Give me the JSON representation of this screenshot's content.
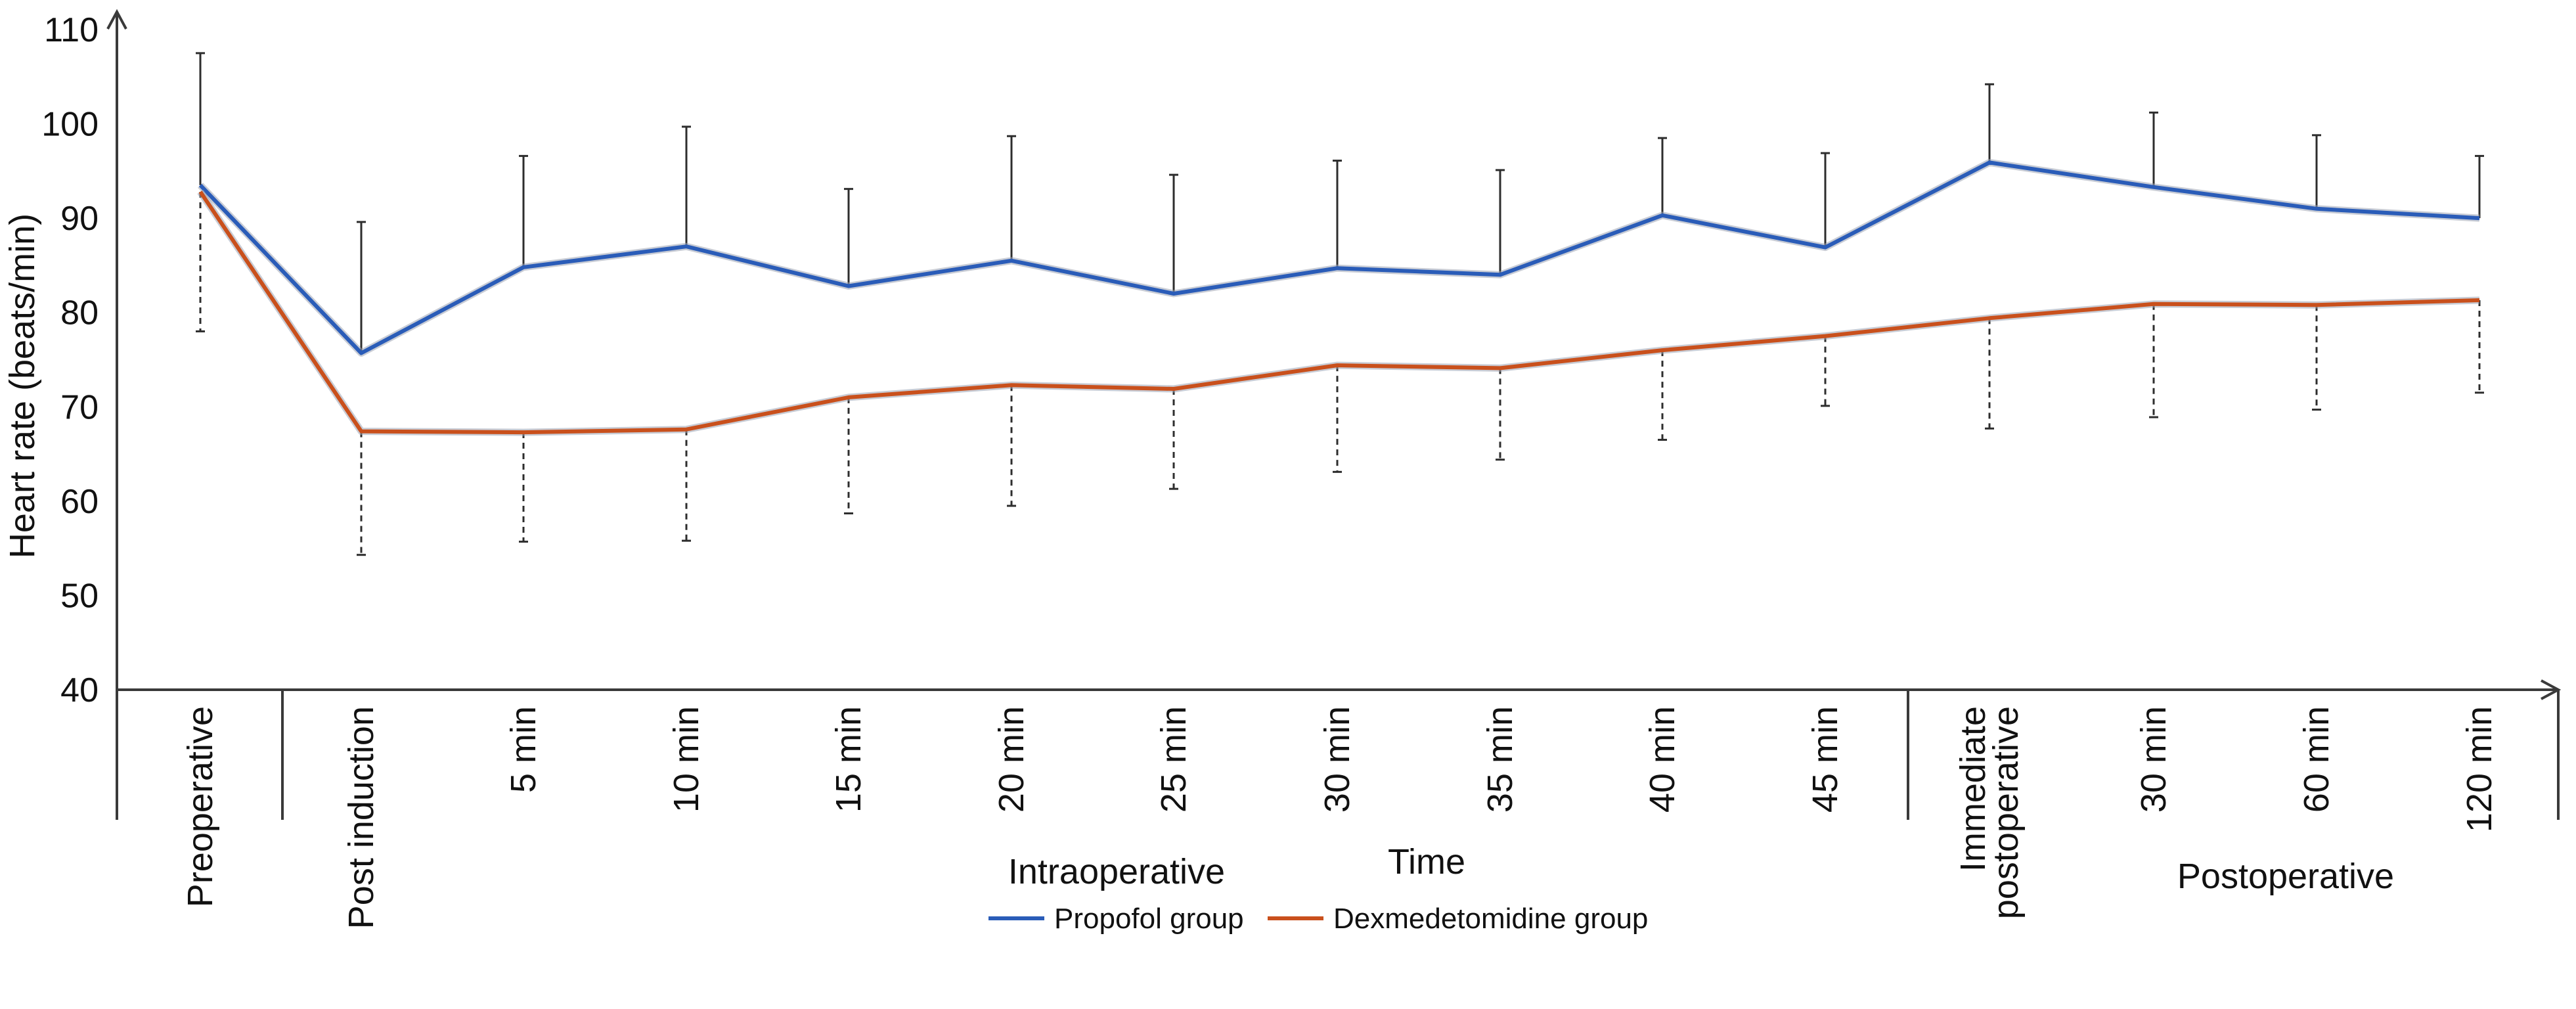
{
  "chart_data": {
    "type": "line",
    "title": "",
    "xlabel": "Time",
    "ylabel": "Heart rate (beats/min)",
    "ylim": [
      40,
      110
    ],
    "yticks": [
      40,
      50,
      60,
      70,
      80,
      90,
      100,
      110
    ],
    "grid": false,
    "categories": [
      "Preoperative",
      "Post induction",
      "5 min",
      "10 min",
      "15 min",
      "20 min",
      "25 min",
      "30 min",
      "35 min",
      "40 min",
      "45 min",
      "Immediate postoperative",
      "30 min",
      "60 min",
      "120 min"
    ],
    "groups": [
      {
        "name": "Intraoperative",
        "start": 1,
        "end": 10
      },
      {
        "name": "Postoperative",
        "start": 11,
        "end": 14
      }
    ],
    "series": [
      {
        "name": "Propofol group",
        "color": "#2a5cb8",
        "values": [
          93.5,
          75.7,
          84.8,
          87.0,
          82.8,
          85.5,
          82.0,
          84.7,
          84.0,
          90.3,
          86.9,
          95.9,
          93.3,
          91.0,
          90.0
        ],
        "error_up": [
          14.0,
          13.9,
          11.8,
          12.7,
          10.3,
          13.2,
          12.6,
          11.4,
          11.1,
          8.2,
          10.0,
          8.3,
          7.9,
          7.8,
          6.6
        ],
        "error_style": "solid"
      },
      {
        "name": "Dexmedetomidine group",
        "color": "#c9501c",
        "values": [
          92.8,
          67.4,
          67.3,
          67.6,
          71.0,
          72.3,
          71.9,
          74.4,
          74.1,
          76.0,
          77.5,
          79.4,
          80.9,
          80.8,
          81.3
        ],
        "error_down": [
          14.8,
          13.1,
          11.6,
          11.8,
          12.3,
          12.8,
          10.6,
          11.3,
          9.7,
          9.5,
          7.4,
          11.7,
          12.0,
          11.1,
          9.8
        ],
        "error_style": "dashed"
      }
    ],
    "legend": [
      "Propofol group",
      "Dexmedetomidine group"
    ],
    "legend_position": "bottom-center"
  }
}
